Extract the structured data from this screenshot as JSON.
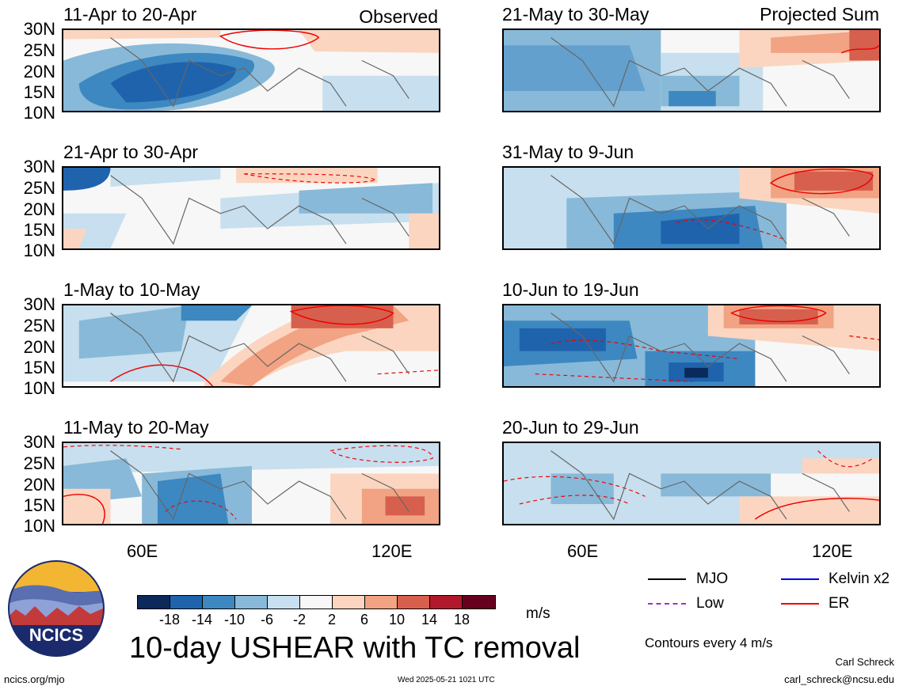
{
  "panels": [
    {
      "title": "11-Apr to 20-Apr",
      "label": "Observed"
    },
    {
      "title": "21-Apr to 30-Apr",
      "label": ""
    },
    {
      "title": "1-May to 10-May",
      "label": ""
    },
    {
      "title": "11-May to 20-May",
      "label": ""
    },
    {
      "title": "21-May to 30-May",
      "label": "Projected Sum"
    },
    {
      "title": "31-May to 9-Jun",
      "label": ""
    },
    {
      "title": "10-Jun to 19-Jun",
      "label": ""
    },
    {
      "title": "20-Jun to 29-Jun",
      "label": ""
    }
  ],
  "lat_labels": [
    "30N",
    "25N",
    "20N",
    "15N",
    "10N"
  ],
  "lon_labels": [
    "60E",
    "120E"
  ],
  "colorbar": {
    "labels": [
      "-18",
      "-14",
      "-10",
      "-6",
      "-2",
      "2",
      "6",
      "10",
      "14",
      "18"
    ],
    "colors": [
      "#0b2a5b",
      "#1f63ad",
      "#3d88c1",
      "#88b9d8",
      "#c7dfee",
      "#f7f7f7",
      "#fbd5c0",
      "#f1a383",
      "#d6604d",
      "#b2182b",
      "#67001f"
    ],
    "units": "m/s"
  },
  "legend": {
    "items": [
      {
        "label": "MJO",
        "color": "#000000",
        "style": "solid"
      },
      {
        "label": "Kelvin x2",
        "color": "#0000ee",
        "style": "solid"
      },
      {
        "label": "Low",
        "color": "#9933cc",
        "style": "dashed"
      },
      {
        "label": "ER",
        "color": "#ee0000",
        "style": "solid"
      }
    ],
    "contour_note": "Contours every 4 m/s"
  },
  "main_title": "10-day USHEAR with TC removal",
  "footer": {
    "site": "ncics.org/mjo",
    "timestamp": "Wed 2025-05-21 1021 UTC",
    "author": "Carl Schreck",
    "email": "carl_schreck@ncsu.edu"
  },
  "logo": {
    "text": "NCICS"
  }
}
